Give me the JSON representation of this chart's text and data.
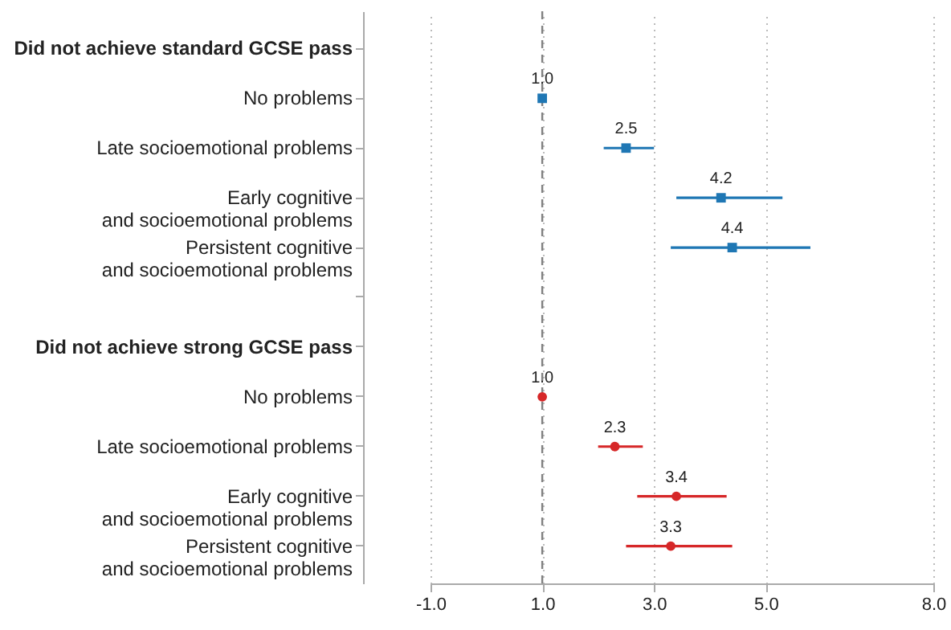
{
  "chart_data": {
    "type": "scatter",
    "orientation": "horizontal",
    "categories": [
      "Did not achieve standard GCSE pass",
      "No problems",
      "Late socioemotional problems",
      "Early cognitive\nand socioemotional problems",
      "Persistent cognitive\nand socioemotional problems",
      null,
      "Did not achieve strong GCSE pass",
      "No problems",
      "Late socioemotional problems",
      "Early cognitive\nand socioemotional problems",
      "Persistent cognitive\nand socioemotional problems"
    ],
    "series": [
      {
        "color": "#1f77b4",
        "marker": "square",
        "values": [
          null,
          1.0,
          2.5,
          4.2,
          4.4,
          null,
          null,
          null,
          null,
          null,
          null
        ],
        "errors": [
          null,
          null,
          [
            2.1,
            3.0
          ],
          [
            3.4,
            5.3
          ],
          [
            3.3,
            5.8
          ],
          null,
          null,
          null,
          null,
          null,
          null
        ],
        "value_labels": [
          null,
          "1.0",
          "2.5",
          "4.2",
          "4.4",
          null,
          null,
          null,
          null,
          null,
          null
        ]
      },
      {
        "color": "#d62728",
        "marker": "circle",
        "values": [
          null,
          null,
          null,
          null,
          null,
          null,
          null,
          1.0,
          2.3,
          3.4,
          3.3
        ],
        "errors": [
          null,
          null,
          null,
          null,
          null,
          null,
          null,
          null,
          [
            2.0,
            2.8
          ],
          [
            2.7,
            4.3
          ],
          [
            2.5,
            4.4
          ]
        ],
        "value_labels": [
          null,
          null,
          null,
          null,
          null,
          null,
          null,
          "1.0",
          "2.3",
          "3.4",
          "3.3"
        ]
      }
    ],
    "xlim": [
      -1,
      8
    ],
    "xticks": [
      {
        "value": -1,
        "label": "-1.0"
      },
      {
        "value": 1,
        "label": "1.0"
      },
      {
        "value": 3,
        "label": "3.0"
      },
      {
        "value": 5,
        "label": "5.0"
      },
      {
        "value": 8,
        "label": "8.0"
      }
    ],
    "grid": "x",
    "ref_lines": [
      {
        "axis": "x",
        "value": 1,
        "color": "#808080",
        "line_style": "dashed"
      }
    ]
  }
}
